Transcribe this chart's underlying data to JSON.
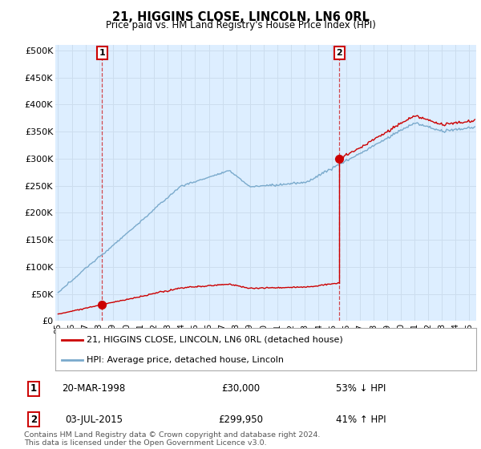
{
  "title": "21, HIGGINS CLOSE, LINCOLN, LN6 0RL",
  "subtitle": "Price paid vs. HM Land Registry's House Price Index (HPI)",
  "ylabel_ticks": [
    "£0",
    "£50K",
    "£100K",
    "£150K",
    "£200K",
    "£250K",
    "£300K",
    "£350K",
    "£400K",
    "£450K",
    "£500K"
  ],
  "ytick_values": [
    0,
    50000,
    100000,
    150000,
    200000,
    250000,
    300000,
    350000,
    400000,
    450000,
    500000
  ],
  "xlim_start": 1994.8,
  "xlim_end": 2025.5,
  "ylim_min": 0,
  "ylim_max": 510000,
  "purchase1_date": 1998.22,
  "purchase1_price": 30000,
  "purchase2_date": 2015.52,
  "purchase2_price": 299950,
  "red_line_color": "#cc0000",
  "blue_line_color": "#7aaacc",
  "dashed_color": "#cc0000",
  "grid_color": "#ccddee",
  "plot_bg_color": "#ddeeff",
  "background_color": "#ffffff",
  "legend_label1": "21, HIGGINS CLOSE, LINCOLN, LN6 0RL (detached house)",
  "legend_label2": "HPI: Average price, detached house, Lincoln",
  "annotation1_label": "1",
  "annotation1_date": "20-MAR-1998",
  "annotation1_price": "£30,000",
  "annotation1_hpi": "53% ↓ HPI",
  "annotation2_label": "2",
  "annotation2_date": "03-JUL-2015",
  "annotation2_price": "£299,950",
  "annotation2_hpi": "41% ↑ HPI",
  "footer": "Contains HM Land Registry data © Crown copyright and database right 2024.\nThis data is licensed under the Open Government Licence v3.0.",
  "xtick_years": [
    1995,
    1996,
    1997,
    1998,
    1999,
    2000,
    2001,
    2002,
    2003,
    2004,
    2005,
    2006,
    2007,
    2008,
    2009,
    2010,
    2011,
    2012,
    2013,
    2014,
    2015,
    2016,
    2017,
    2018,
    2019,
    2020,
    2021,
    2022,
    2023,
    2024,
    2025
  ]
}
